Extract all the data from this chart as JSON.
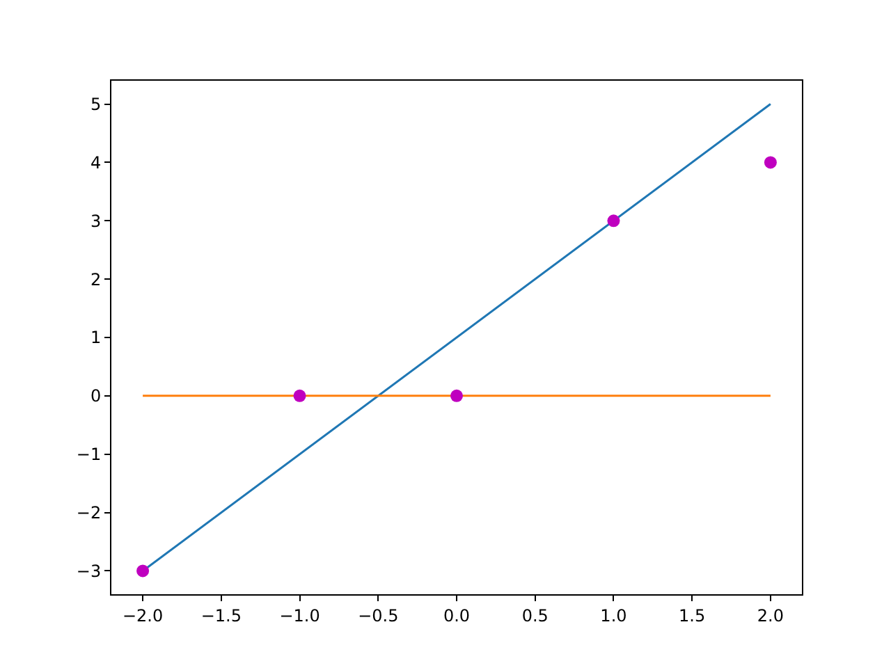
{
  "chart_data": {
    "type": "line",
    "series": [
      {
        "color": "#1f77b4",
        "x": [
          -2,
          2
        ],
        "values": [
          -3,
          5
        ]
      },
      {
        "color": "#ff7f0e",
        "x": [
          -2,
          2
        ],
        "values": [
          0,
          0
        ]
      },
      {
        "type": "scatter",
        "color": "#bf00bf",
        "marker": "circle",
        "x": [
          -2,
          -1,
          0,
          1,
          2
        ],
        "values": [
          -3,
          0,
          0,
          3,
          4
        ]
      }
    ],
    "xlim": [
      -2.2,
      2.2
    ],
    "ylim": [
      -3.4,
      5.4
    ],
    "xticks": [
      {
        "value": -2,
        "label": "−2.0"
      },
      {
        "value": -1.5,
        "label": "−1.5"
      },
      {
        "value": -1,
        "label": "−1.0"
      },
      {
        "value": -0.5,
        "label": "−0.5"
      },
      {
        "value": 0,
        "label": "0.0"
      },
      {
        "value": 0.5,
        "label": "0.5"
      },
      {
        "value": 1,
        "label": "1.0"
      },
      {
        "value": 1.5,
        "label": "1.5"
      },
      {
        "value": 2,
        "label": "2.0"
      }
    ],
    "yticks": [
      {
        "value": -3,
        "label": "−3"
      },
      {
        "value": -2,
        "label": "−2"
      },
      {
        "value": -1,
        "label": "−1"
      },
      0,
      1,
      2,
      3,
      4,
      5
    ],
    "tick_labels": "xy"
  }
}
